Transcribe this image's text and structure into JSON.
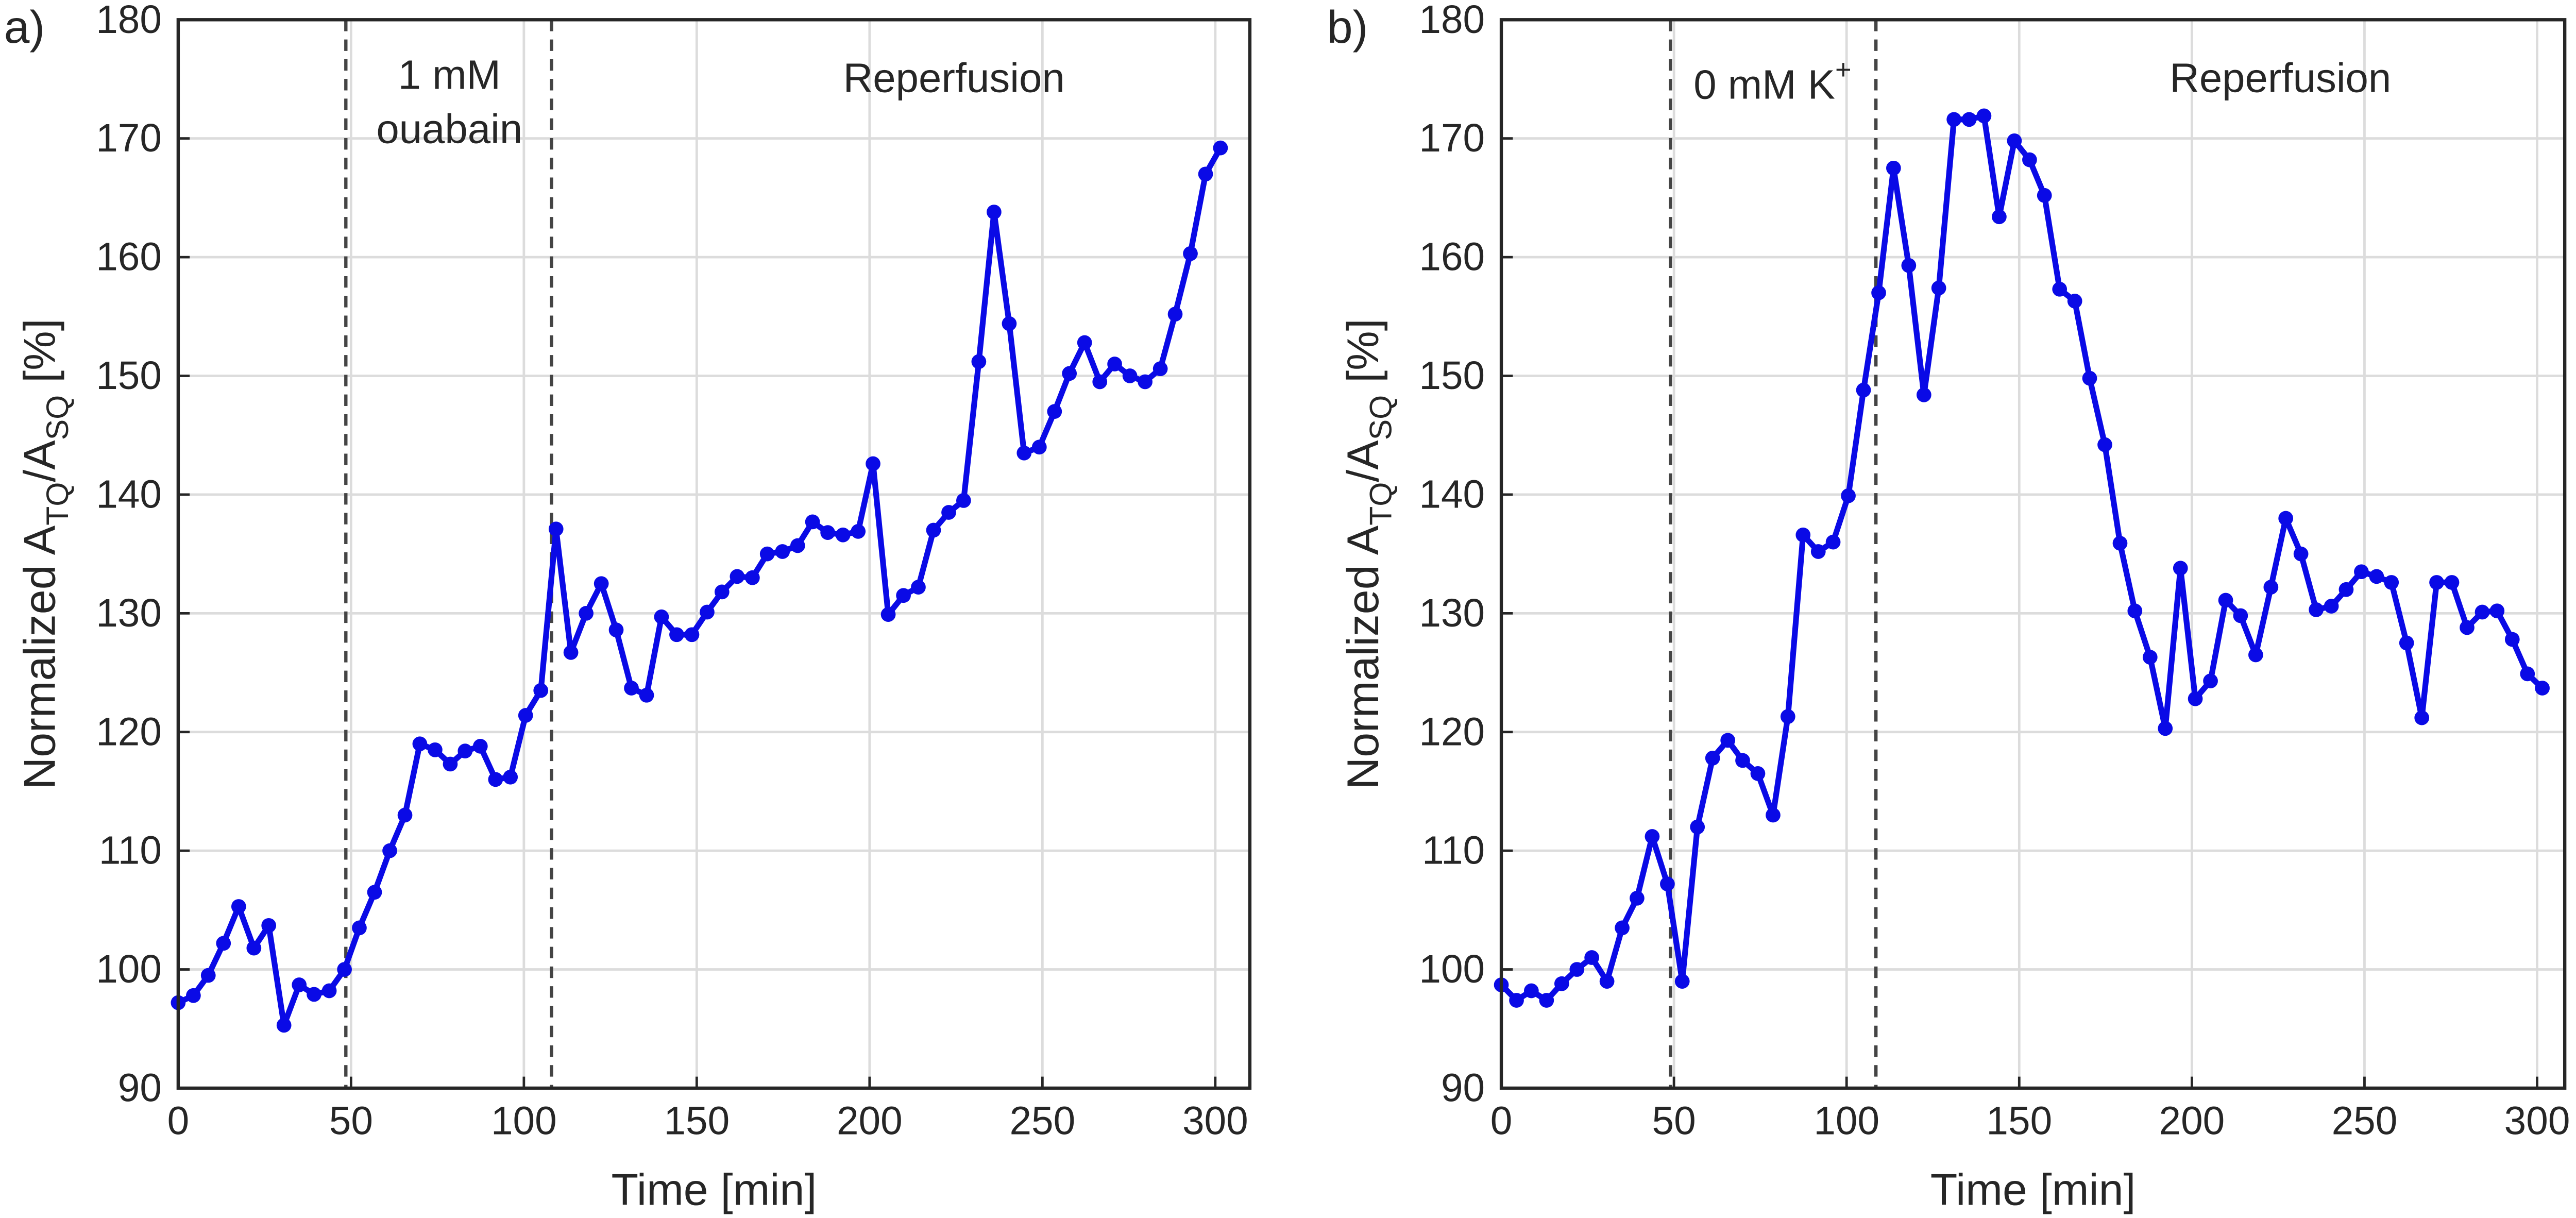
{
  "chart_data": [
    {
      "type": "line",
      "panel": "a)",
      "xlabel": "Time [min]",
      "ylabel": {
        "main": "Normalized A",
        "sub1": "TQ",
        "mid": "/A",
        "sub2": "SQ",
        "end": " [%]"
      },
      "annotations": [
        {
          "lines": [
            "1 mM",
            "ouabain"
          ]
        },
        {
          "lines": [
            "Reperfusion"
          ]
        }
      ],
      "vlines": [
        48.5,
        108
      ],
      "xlim": [
        0,
        310
      ],
      "xticks": [
        0,
        50,
        100,
        150,
        200,
        250,
        300
      ],
      "ylim": [
        90,
        180
      ],
      "yticks": [
        90,
        100,
        110,
        120,
        130,
        140,
        150,
        160,
        170,
        180
      ],
      "grid": true,
      "series": [
        {
          "color": "#0a0ae6",
          "x": [
            0,
            4.4,
            8.7,
            13.1,
            17.5,
            21.9,
            26.2,
            30.6,
            35,
            39.3,
            43.7,
            48.1,
            52.4,
            56.8,
            61.2,
            65.6,
            69.9,
            74.3,
            78.7,
            83,
            87.4,
            91.8,
            96.1,
            100.5,
            104.9,
            109.3,
            113.6,
            118,
            122.4,
            126.7,
            131.1,
            135.5,
            139.8,
            144.2,
            148.6,
            153,
            157.3,
            161.7,
            166.1,
            170.4,
            174.8,
            179.2,
            183.5,
            187.9,
            192.3,
            196.7,
            201,
            205.4,
            209.8,
            214.1,
            218.5,
            222.9,
            227.2,
            231.6,
            236,
            240.4,
            244.7,
            249.1,
            253.5,
            257.8,
            262.2,
            266.6,
            270.9,
            275.3,
            279.7,
            284.1,
            288.4,
            292.8,
            297.2,
            301.5
          ],
          "values": [
            97.2,
            97.8,
            99.5,
            102.2,
            105.3,
            101.8,
            103.7,
            95.3,
            98.7,
            97.9,
            98.2,
            100,
            103.5,
            106.5,
            110,
            113,
            119,
            118.5,
            117.3,
            118.4,
            118.8,
            116,
            116.2,
            121.4,
            123.5,
            137.1,
            126.7,
            130,
            132.5,
            128.6,
            123.7,
            123.1,
            129.7,
            128.2,
            128.2,
            130.1,
            131.8,
            133.1,
            133,
            135,
            135.2,
            135.7,
            137.7,
            136.8,
            136.6,
            136.9,
            142.6,
            129.9,
            131.5,
            132.2,
            137,
            138.5,
            139.5,
            151.2,
            163.8,
            154.4,
            143.5,
            144,
            147,
            150.2,
            152.8,
            149.5,
            151,
            150,
            149.5,
            150.6,
            155.2,
            160.3,
            167,
            169.2
          ]
        }
      ]
    },
    {
      "type": "line",
      "panel": "b)",
      "xlabel": "Time [min]",
      "ylabel": {
        "main": "Normalized A",
        "sub1": "TQ",
        "mid": "/A",
        "sub2": "SQ",
        "end": " [%]"
      },
      "annotations": [
        {
          "lines": [
            "0 mM K"
          ],
          "sup": "+"
        },
        {
          "lines": [
            "Reperfusion"
          ]
        }
      ],
      "vlines": [
        49,
        108.5
      ],
      "xlim": [
        0,
        308
      ],
      "xticks": [
        0,
        50,
        100,
        150,
        200,
        250,
        300
      ],
      "ylim": [
        90,
        180
      ],
      "yticks": [
        90,
        100,
        110,
        120,
        130,
        140,
        150,
        160,
        170,
        180
      ],
      "grid": true,
      "series": [
        {
          "color": "#0a0ae6",
          "x": [
            0,
            4.4,
            8.7,
            13.1,
            17.5,
            21.9,
            26.2,
            30.6,
            35,
            39.3,
            43.7,
            48.1,
            52.4,
            56.8,
            61.2,
            65.6,
            69.9,
            74.3,
            78.7,
            83,
            87.4,
            91.8,
            96.1,
            100.5,
            104.9,
            109.3,
            113.6,
            118,
            122.4,
            126.7,
            131.1,
            135.5,
            139.8,
            144.2,
            148.6,
            153,
            157.3,
            161.7,
            166.1,
            170.4,
            174.8,
            179.2,
            183.5,
            187.9,
            192.3,
            196.7,
            201,
            205.4,
            209.8,
            214.1,
            218.5,
            222.9,
            227.2,
            231.6,
            236,
            240.4,
            244.7,
            249.1,
            253.5,
            257.8,
            262.2,
            266.6,
            270.9,
            275.3,
            279.7,
            284.1,
            288.4,
            292.8,
            297.2,
            301.5
          ],
          "values": [
            98.7,
            97.4,
            98.2,
            97.4,
            98.8,
            100,
            101,
            99,
            103.5,
            106,
            111.2,
            107.2,
            99,
            112,
            117.8,
            119.3,
            117.6,
            116.5,
            113,
            121.3,
            136.6,
            135.2,
            136,
            139.9,
            148.8,
            157,
            167.5,
            159.3,
            148.4,
            157.4,
            171.6,
            171.6,
            171.9,
            163.4,
            169.8,
            168.2,
            165.2,
            157.3,
            156.3,
            149.8,
            144.2,
            135.9,
            130.2,
            126.3,
            120.3,
            133.8,
            122.8,
            124.3,
            131.1,
            129.8,
            126.5,
            132.2,
            138,
            135,
            130.3,
            130.6,
            132,
            133.5,
            133.1,
            132.6,
            127.5,
            121.2,
            132.6,
            132.6,
            128.8,
            130.1,
            130.2,
            127.8,
            124.9,
            123.7
          ]
        }
      ]
    }
  ]
}
